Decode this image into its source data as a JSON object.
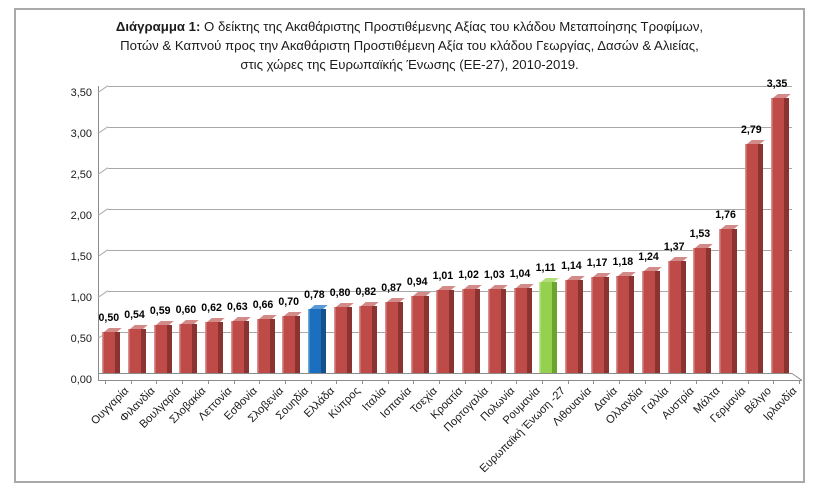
{
  "title": {
    "line1_prefix": "Διάγραμμα 1:",
    "line1_rest": " Ο δείκτης της Ακαθάριστης Προστιθέμενης Αξίας του κλάδου Μεταποίησης Τροφίμων,",
    "line2": "Ποτών & Καπνού προς την Ακαθάριστη Προστιθέμενη Αξία  του κλάδου Γεωργίας, Δασών & Αλιείας,",
    "line3": "στις χώρες της Ευρωπαϊκής Ένωσης (ΕΕ-27), 2010-2019."
  },
  "chart_data": {
    "type": "bar",
    "title": "Διάγραμμα 1: Ο δείκτης της Ακαθάριστης Προστιθέμενης Αξίας του κλάδου Μεταποίησης Τροφίμων, Ποτών & Καπνού προς την Ακαθάριστη Προστιθέμενη Αξία του κλάδου Γεωργίας, Δασών & Αλιείας, στις χώρες της Ευρωπαϊκής Ένωσης (ΕΕ-27), 2010-2019.",
    "categories": [
      "Ουγγαρία",
      "Φιλανδία",
      "Βουλγαρία",
      "Σλοβακία",
      "Λεττονία",
      "Εσθονία",
      "Σλοβενία",
      "Σουηδία",
      "Ελλάδα",
      "Κύπρος",
      "Ιταλία",
      "Ισπανία",
      "Τσεχία",
      "Κροατία",
      "Πορτογαλία",
      "Πολωνία",
      "Ρουμανία",
      "Ευρωπαϊκή Ένωση -27",
      "Λιθουανία",
      "Δανία",
      "Ολλανδία",
      "Γαλλία",
      "Αυστρία",
      "Μάλτα",
      "Γερμανία",
      "Βέλγιο",
      "Ιρλανδία"
    ],
    "values": [
      0.5,
      0.54,
      0.59,
      0.6,
      0.62,
      0.63,
      0.66,
      0.7,
      0.78,
      0.8,
      0.82,
      0.87,
      0.94,
      1.01,
      1.02,
      1.03,
      1.04,
      1.11,
      1.14,
      1.17,
      1.18,
      1.24,
      1.37,
      1.53,
      1.76,
      2.79,
      3.35
    ],
    "value_labels": [
      "0,50",
      "0,54",
      "0,59",
      "0,60",
      "0,62",
      "0,63",
      "0,66",
      "0,70",
      "0,78",
      "0,80",
      "0,82",
      "0,87",
      "0,94",
      "1,01",
      "1,02",
      "1,03",
      "1,04",
      "1,11",
      "1,14",
      "1,17",
      "1,18",
      "1,24",
      "1,37",
      "1,53",
      "1,76",
      "2,79",
      "3,35"
    ],
    "y_ticks": [
      "0,00",
      "0,50",
      "1,00",
      "1,50",
      "2,00",
      "2,50",
      "3,00",
      "3,50"
    ],
    "ylim": [
      0,
      3.5
    ],
    "grid": true,
    "legend": "none",
    "xlabel": "",
    "ylabel": "",
    "palette": {
      "default": {
        "face": "#BE4B48",
        "side": "#8B3330",
        "edge": "#D9908E",
        "cap": "#D38B89"
      },
      "greece": {
        "face": "#1B6FBE",
        "side": "#14518C",
        "edge": "#6FA8DC",
        "cap": "#5B9BD5"
      },
      "eu": {
        "face": "#94D14F",
        "side": "#6CA42F",
        "edge": "#C2E699",
        "cap": "#B2DE79"
      }
    },
    "color_overrides": {
      "8": "greece",
      "17": "eu"
    }
  }
}
